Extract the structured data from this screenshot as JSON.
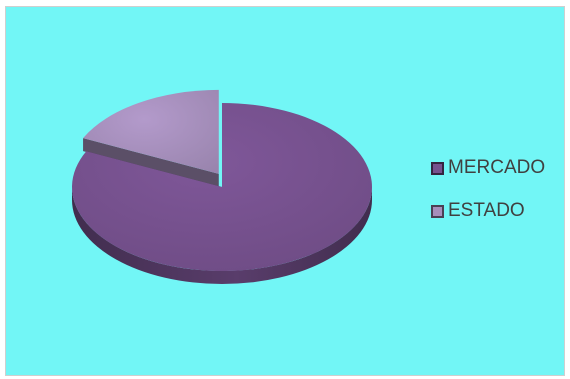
{
  "chart_data": {
    "type": "pie",
    "style": "3d-exploded",
    "categories": [
      "MERCADO",
      "ESTADO"
    ],
    "values": [
      82,
      18
    ],
    "colors": {
      "MERCADO": "#76518e",
      "ESTADO": "#a68fbc"
    },
    "title": "",
    "legend_position": "right"
  },
  "page": {
    "background": "#72f6f6"
  }
}
